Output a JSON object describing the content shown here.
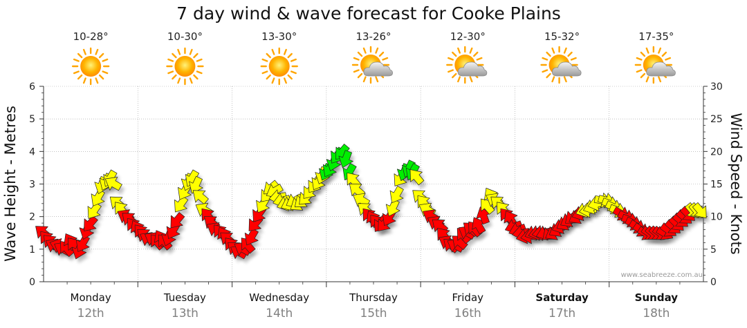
{
  "chart_data": {
    "type": "line",
    "title": "7 day wind & wave forecast for Cooke Plains",
    "ylabel_left": "Wave Height - Metres",
    "ylabel_right": "Wind Speed - Knots",
    "ylim_left": [
      0,
      6
    ],
    "ylim_right": [
      0,
      30
    ],
    "yticks_left": [
      "0",
      "1",
      "2",
      "3",
      "4",
      "5",
      "6"
    ],
    "yticks_right": [
      "0",
      "5",
      "10",
      "15",
      "20",
      "25",
      "30"
    ],
    "watermark": "www.seabreeze.com.au",
    "days": [
      {
        "name": "Monday",
        "date": "12th",
        "temp": "10-28°",
        "weather": "sunny",
        "bold": false
      },
      {
        "name": "Tuesday",
        "date": "13th",
        "temp": "10-30°",
        "weather": "sunny",
        "bold": false
      },
      {
        "name": "Wednesday",
        "date": "14th",
        "temp": "13-30°",
        "weather": "sunny",
        "bold": false
      },
      {
        "name": "Thursday",
        "date": "15th",
        "temp": "13-26°",
        "weather": "partly-cloudy",
        "bold": false
      },
      {
        "name": "Friday",
        "date": "16th",
        "temp": "12-30°",
        "weather": "partly-cloudy",
        "bold": false
      },
      {
        "name": "Saturday",
        "date": "17th",
        "temp": "15-32°",
        "weather": "partly-cloudy",
        "bold": true
      },
      {
        "name": "Sunday",
        "date": "18th",
        "temp": "17-35°",
        "weather": "partly-cloudy",
        "bold": true
      }
    ],
    "wind_series": {
      "name": "Wind speed (knots)",
      "t": [
        0.0,
        0.04,
        0.08,
        0.12,
        0.17,
        0.21,
        0.25,
        0.29,
        0.33,
        0.38,
        0.42,
        0.46,
        0.5,
        0.54,
        0.58,
        0.62,
        0.67,
        0.71,
        0.75,
        0.79,
        0.83,
        0.88,
        0.92,
        0.96,
        1.0,
        1.04,
        1.08,
        1.12,
        1.17,
        1.21,
        1.25,
        1.29,
        1.33,
        1.38,
        1.42,
        1.46,
        1.5,
        1.54,
        1.58,
        1.62,
        1.67,
        1.71,
        1.75,
        1.79,
        1.83,
        1.88,
        1.92,
        1.96,
        2.0,
        2.04,
        2.08,
        2.12,
        2.17,
        2.21,
        2.25,
        2.29,
        2.33,
        2.38,
        2.42,
        2.46,
        2.5,
        2.54,
        2.58,
        2.62,
        2.67,
        2.71,
        2.75,
        2.79,
        2.83,
        2.88,
        2.92,
        2.96,
        3.0,
        3.04,
        3.08,
        3.12,
        3.17,
        3.21,
        3.25,
        3.29,
        3.33,
        3.38,
        3.42,
        3.46,
        3.5,
        3.54,
        3.58,
        3.62,
        3.67,
        3.71,
        3.75,
        3.79,
        3.83,
        3.88,
        3.92,
        3.96,
        4.0,
        4.04,
        4.08,
        4.12,
        4.17,
        4.21,
        4.25,
        4.29,
        4.33,
        4.38,
        4.42,
        4.46,
        4.5,
        4.54,
        4.58,
        4.62,
        4.67,
        4.71,
        4.75,
        4.79,
        4.83,
        4.88,
        4.92,
        4.96,
        5.0,
        5.04,
        5.08,
        5.12,
        5.17,
        5.21,
        5.25,
        5.29,
        5.33,
        5.38,
        5.42,
        5.46,
        5.5,
        5.54,
        5.58,
        5.62,
        5.67,
        5.71,
        5.75,
        5.79,
        5.83,
        5.88,
        5.92,
        5.96,
        6.0,
        6.04,
        6.08,
        6.12,
        6.17,
        6.21,
        6.25,
        6.29,
        6.33,
        6.38,
        6.42,
        6.46,
        6.5,
        6.54,
        6.58,
        6.62,
        6.67,
        6.71,
        6.75,
        6.79,
        6.83,
        6.88,
        6.92,
        6.96
      ],
      "values": [
        7.5,
        6.5,
        6,
        5.5,
        5.5,
        5,
        5,
        6,
        5.5,
        5,
        6,
        8,
        9,
        11,
        13,
        15,
        15.5,
        16,
        15,
        12,
        11,
        10,
        9.5,
        8.5,
        8,
        7.5,
        7,
        6.5,
        6.5,
        6,
        6.5,
        6,
        7,
        8,
        9.5,
        12,
        14,
        15.5,
        16,
        15,
        13,
        11,
        10,
        9,
        8,
        7.5,
        7,
        6.5,
        5.5,
        5,
        4.5,
        5,
        5.5,
        7,
        9,
        10.5,
        12,
        13.5,
        14.5,
        14,
        13,
        12.5,
        12,
        12,
        12.5,
        12,
        12.5,
        13,
        14,
        15,
        15.5,
        16.5,
        17,
        17.5,
        18.5,
        19.5,
        20,
        19,
        17,
        15.5,
        14,
        12.5,
        11,
        10,
        9.5,
        9,
        9,
        9,
        10,
        11.5,
        13.5,
        16,
        17,
        17.5,
        17,
        16,
        13,
        12,
        11,
        10,
        9,
        8.5,
        7,
        6,
        5.5,
        5.5,
        6,
        7,
        7.5,
        8,
        8,
        8.5,
        10,
        11.5,
        13,
        12.5,
        12,
        11,
        10,
        9.5,
        8.5,
        8,
        7.5,
        7,
        7,
        7.5,
        7.5,
        7.5,
        7.5,
        7.5,
        7.5,
        8,
        8.5,
        9,
        9.5,
        10,
        10,
        10.5,
        11,
        11,
        11.5,
        12,
        12.5,
        12.5,
        12,
        11.5,
        11,
        10.5,
        10,
        9.5,
        9,
        8.5,
        8,
        7.5,
        7.5,
        7.5,
        7.5,
        7.5,
        7.5,
        8,
        8.5,
        9,
        9.5,
        10,
        10.5,
        11,
        11,
        11
      ],
      "direction_deg": [
        310,
        320,
        315,
        300,
        290,
        300,
        320,
        330,
        320,
        200,
        210,
        200,
        220,
        215,
        210,
        200,
        205,
        210,
        300,
        310,
        320,
        300,
        310,
        320,
        330,
        320,
        310,
        300,
        300,
        320,
        330,
        320,
        200,
        210,
        220,
        215,
        210,
        200,
        210,
        205,
        310,
        300,
        320,
        310,
        300,
        320,
        330,
        310,
        320,
        310,
        300,
        300,
        320,
        210,
        220,
        215,
        210,
        220,
        230,
        240,
        260,
        255,
        250,
        245,
        240,
        235,
        230,
        225,
        220,
        215,
        210,
        200,
        205,
        210,
        200,
        215,
        220,
        200,
        210,
        320,
        310,
        300,
        310,
        320,
        330,
        320,
        215,
        220,
        210,
        205,
        210,
        215,
        200,
        205,
        210,
        320,
        310,
        320,
        300,
        300,
        300,
        310,
        320,
        300,
        310,
        300,
        310,
        320,
        300,
        310,
        320,
        330,
        340,
        320,
        330,
        300,
        310,
        320,
        320,
        330,
        250,
        250,
        260,
        255,
        260,
        250,
        255,
        260,
        250,
        230,
        240,
        240,
        250,
        240,
        240,
        230,
        240,
        250,
        250,
        260,
        250,
        255,
        100,
        105,
        110,
        115,
        110,
        120,
        115,
        110,
        115,
        120,
        125,
        120,
        125,
        130,
        130,
        125,
        120,
        125,
        130,
        135,
        130,
        130,
        135,
        140,
        140,
        140
      ]
    }
  },
  "markers": {
    "light": "#ffff00",
    "strong": "#ff0000",
    "medium": "#00ee00",
    "grid": "#999999"
  }
}
